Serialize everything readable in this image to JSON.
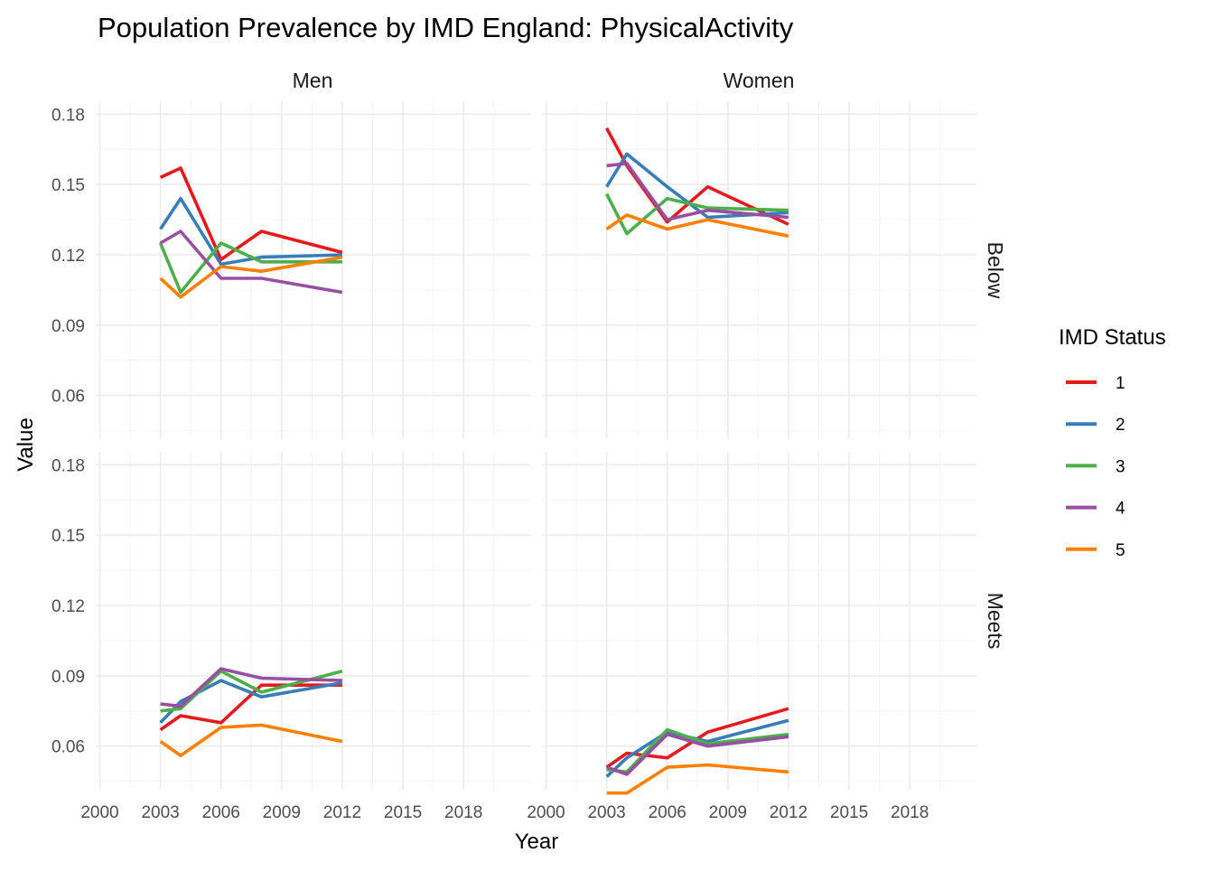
{
  "chart_data": {
    "type": "line",
    "title": "Population Prevalence by IMD England: PhysicalActivity",
    "xlabel": "Year",
    "ylabel": "Value",
    "xlim": [
      1999.8,
      2021.3
    ],
    "ylim": [
      0.0414,
      0.1855
    ],
    "x_ticks": [
      2000,
      2003,
      2006,
      2009,
      2012,
      2015,
      2018
    ],
    "x_tick_labels": [
      "2000",
      "2003",
      "2006",
      "2009",
      "2012",
      "2015",
      "2018"
    ],
    "y_ticks": [
      0.06,
      0.09,
      0.12,
      0.15,
      0.18
    ],
    "y_tick_labels": [
      "0.06",
      "0.09",
      "0.12",
      "0.15",
      "0.18"
    ],
    "grid": true,
    "facet_columns": [
      "Men",
      "Women"
    ],
    "facet_rows": [
      "Below",
      "Meets"
    ],
    "legend": {
      "title": "IMD Status",
      "position": "right",
      "entries": [
        {
          "label": "1",
          "color": "#E41A1C"
        },
        {
          "label": "2",
          "color": "#377EB8"
        },
        {
          "label": "3",
          "color": "#4DAF4A"
        },
        {
          "label": "4",
          "color": "#984EA3"
        },
        {
          "label": "5",
          "color": "#FF7F00"
        }
      ]
    },
    "x": [
      2003,
      2004,
      2006,
      2008,
      2012
    ],
    "panels": [
      {
        "col": "Men",
        "row": "Below",
        "series": [
          {
            "name": "1",
            "values": [
              0.153,
              0.157,
              0.118,
              0.13,
              0.121
            ]
          },
          {
            "name": "2",
            "values": [
              0.131,
              0.144,
              0.116,
              0.119,
              0.12
            ]
          },
          {
            "name": "3",
            "values": [
              0.125,
              0.104,
              0.125,
              0.117,
              0.117
            ]
          },
          {
            "name": "4",
            "values": [
              0.125,
              0.13,
              0.11,
              0.11,
              0.104
            ]
          },
          {
            "name": "5",
            "values": [
              0.11,
              0.102,
              0.115,
              0.113,
              0.119
            ]
          }
        ]
      },
      {
        "col": "Women",
        "row": "Below",
        "series": [
          {
            "name": "1",
            "values": [
              0.174,
              0.158,
              0.134,
              0.149,
              0.133
            ]
          },
          {
            "name": "2",
            "values": [
              0.149,
              0.163,
              0.149,
              0.136,
              0.138
            ]
          },
          {
            "name": "3",
            "values": [
              0.146,
              0.129,
              0.144,
              0.14,
              0.139
            ]
          },
          {
            "name": "4",
            "values": [
              0.158,
              0.159,
              0.135,
              0.139,
              0.136
            ]
          },
          {
            "name": "5",
            "values": [
              0.131,
              0.137,
              0.131,
              0.135,
              0.128
            ]
          }
        ]
      },
      {
        "col": "Men",
        "row": "Meets",
        "series": [
          {
            "name": "1",
            "values": [
              0.067,
              0.073,
              0.07,
              0.086,
              0.086
            ]
          },
          {
            "name": "2",
            "values": [
              0.07,
              0.079,
              0.088,
              0.081,
              0.087
            ]
          },
          {
            "name": "3",
            "values": [
              0.075,
              0.076,
              0.092,
              0.083,
              0.092
            ]
          },
          {
            "name": "4",
            "values": [
              0.078,
              0.077,
              0.093,
              0.089,
              0.088
            ]
          },
          {
            "name": "5",
            "values": [
              0.062,
              0.056,
              0.068,
              0.069,
              0.062
            ]
          }
        ]
      },
      {
        "col": "Women",
        "row": "Meets",
        "series": [
          {
            "name": "1",
            "values": [
              0.051,
              0.057,
              0.055,
              0.066,
              0.076
            ]
          },
          {
            "name": "2",
            "values": [
              0.047,
              0.055,
              0.066,
              0.062,
              0.071
            ]
          },
          {
            "name": "3",
            "values": [
              0.05,
              0.049,
              0.067,
              0.061,
              0.065
            ]
          },
          {
            "name": "4",
            "values": [
              0.051,
              0.048,
              0.065,
              0.06,
              0.064
            ]
          },
          {
            "name": "5",
            "values": [
              0.04,
              0.04,
              0.051,
              0.052,
              0.049
            ]
          }
        ]
      }
    ]
  }
}
